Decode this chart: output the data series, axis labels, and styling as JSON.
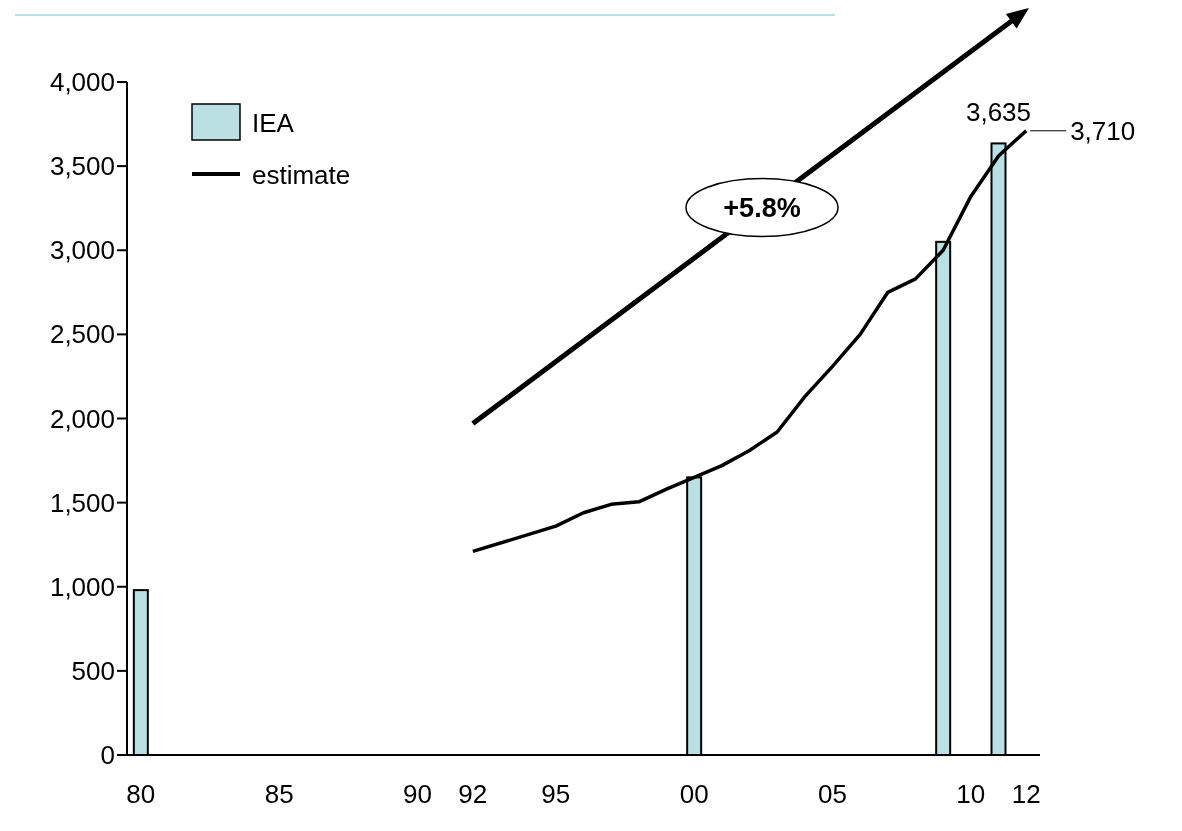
{
  "chart_data": {
    "type": "bar",
    "xlim": [
      1979.5,
      2012.5
    ],
    "xticks": [
      {
        "value": 1980,
        "label": "80"
      },
      {
        "value": 1985,
        "label": "85"
      },
      {
        "value": 1990,
        "label": "90"
      },
      {
        "value": 1992,
        "label": "92"
      },
      {
        "value": 1995,
        "label": "95"
      },
      {
        "value": 2000,
        "label": "00"
      },
      {
        "value": 2005,
        "label": "05"
      },
      {
        "value": 2010,
        "label": "10"
      },
      {
        "value": 2012,
        "label": "12"
      }
    ],
    "ylim": [
      0,
      4000
    ],
    "yticks": [
      0,
      500,
      {
        "value": 1000,
        "label": "1,000"
      },
      {
        "value": 1500,
        "label": "1,500"
      },
      {
        "value": 2000,
        "label": "2,000"
      },
      {
        "value": 2500,
        "label": "2,500"
      },
      {
        "value": 3000,
        "label": "3,000"
      },
      {
        "value": 3500,
        "label": "3,500"
      },
      {
        "value": 4000,
        "label": "4,000"
      }
    ],
    "series": [
      {
        "name": "IEA",
        "color": "#bae0e3",
        "x": [
          1980,
          2000,
          2009,
          2011
        ],
        "values": [
          980,
          1650,
          3050,
          3635
        ],
        "value_labels": [
          null,
          null,
          null,
          "3,635"
        ]
      },
      {
        "name": "estimate",
        "type": "line",
        "color": "#000000",
        "x": [
          1992,
          1995,
          1996,
          1997,
          1998,
          1999,
          2000,
          2001,
          2002,
          2003,
          2004,
          2005,
          2006,
          2007,
          2008,
          2009,
          2010,
          2011,
          2012
        ],
        "values": [
          1210,
          1360,
          1440,
          1490,
          1505,
          1580,
          1650,
          1720,
          1810,
          1920,
          2130,
          2310,
          2500,
          2750,
          2830,
          3000,
          3320,
          3560,
          3710
        ],
        "value_labels": [
          null,
          null,
          null,
          null,
          null,
          null,
          null,
          null,
          null,
          null,
          null,
          null,
          null,
          null,
          null,
          null,
          null,
          null,
          "3,710"
        ]
      }
    ],
    "legend": "top left",
    "grid": false,
    "annotations": [
      "+5.8%"
    ]
  }
}
